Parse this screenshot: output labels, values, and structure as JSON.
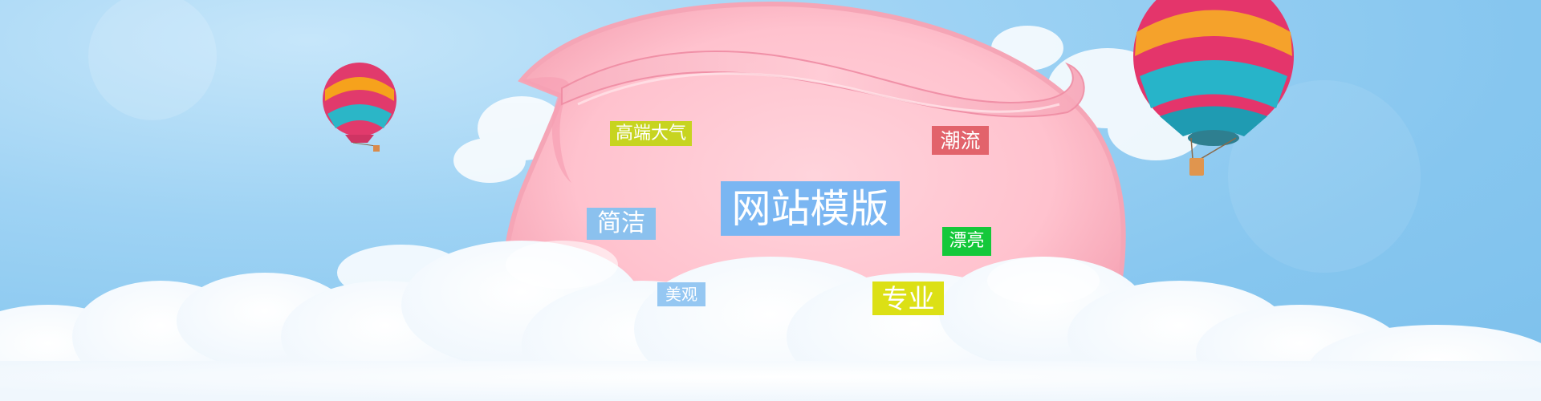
{
  "banner": {
    "tags": {
      "gaoduan": {
        "text": "高端大气",
        "color": "#c7d420"
      },
      "chaoliu": {
        "text": "潮流",
        "color": "#e2636b"
      },
      "wangzhan": {
        "text": "网站模版",
        "color": "#7ab6f2"
      },
      "jianjie": {
        "text": "简洁",
        "color": "#8bc1ee"
      },
      "piaoliang": {
        "text": "漂亮",
        "color": "#14c83a"
      },
      "meiguan": {
        "text": "美观",
        "color": "#95c7f2"
      },
      "zhuanye": {
        "text": "专业",
        "color": "#dce015"
      }
    }
  }
}
